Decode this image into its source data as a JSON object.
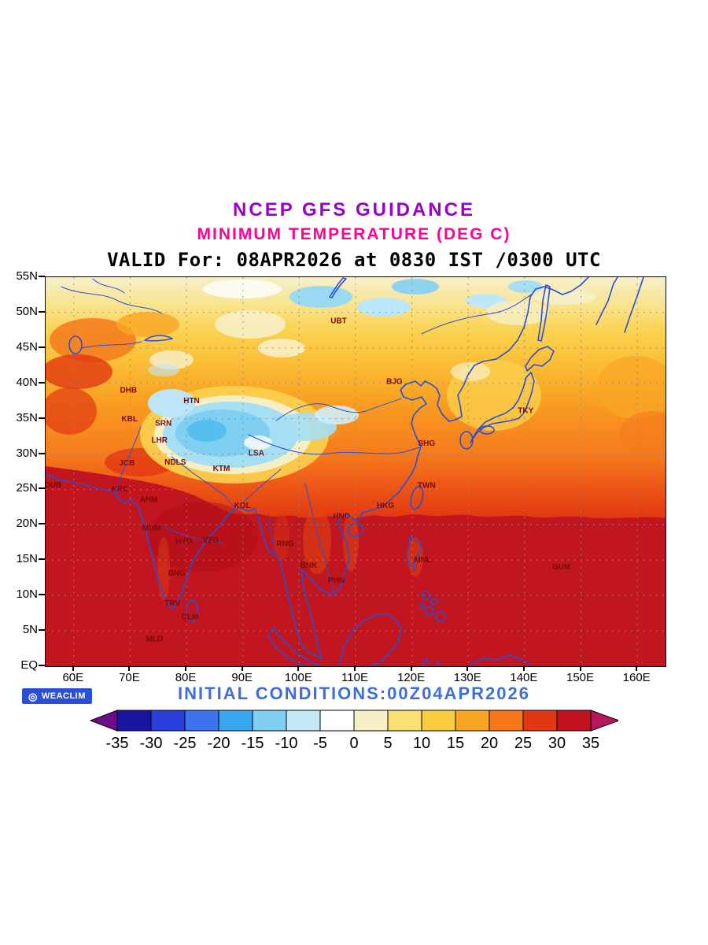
{
  "titles": {
    "line1": "NCEP GFS GUIDANCE",
    "line2": "MINIMUM TEMPERATURE (DEG C)",
    "line3": "VALID For: 08APR2026 at 0830 IST /0300 UTC"
  },
  "colors": {
    "title1": "#9900CC",
    "title2": "#FF0099",
    "title3": "#000000",
    "initial_conditions": "#3C6EDE",
    "badge_background": "#2B50D6",
    "badge_text": "#FFFFFF",
    "coastline": "#2A4FD6",
    "station_label": "#7A0A0A",
    "gridline": "#8A8A8A",
    "axis": "#000000"
  },
  "map": {
    "lon_min": 55,
    "lon_max": 165,
    "lat_min": 0,
    "lat_max": 55,
    "x_axis": {
      "labels": [
        "60E",
        "70E",
        "80E",
        "90E",
        "100E",
        "110E",
        "120E",
        "130E",
        "140E",
        "150E",
        "160E"
      ],
      "lons": [
        60,
        70,
        80,
        90,
        100,
        110,
        120,
        130,
        140,
        150,
        160
      ]
    },
    "y_axis": {
      "labels": [
        "55N",
        "50N",
        "45N",
        "40N",
        "35N",
        "30N",
        "25N",
        "20N",
        "15N",
        "10N",
        "5N",
        "EQ"
      ],
      "lats": [
        55,
        50,
        45,
        40,
        35,
        30,
        25,
        20,
        15,
        10,
        5,
        0
      ]
    },
    "stations": [
      {
        "name": "UBT",
        "lon": 107.0,
        "lat": 48.5
      },
      {
        "name": "BJG",
        "lon": 116.9,
        "lat": 39.9
      },
      {
        "name": "TKY",
        "lon": 140.2,
        "lat": 35.8
      },
      {
        "name": "SHG",
        "lon": 122.6,
        "lat": 31.2
      },
      {
        "name": "DHB",
        "lon": 69.7,
        "lat": 38.7
      },
      {
        "name": "HTN",
        "lon": 80.9,
        "lat": 37.2
      },
      {
        "name": "KBL",
        "lon": 69.9,
        "lat": 34.6
      },
      {
        "name": "SRN",
        "lon": 75.9,
        "lat": 34.0
      },
      {
        "name": "LHR",
        "lon": 75.2,
        "lat": 31.6
      },
      {
        "name": "LSA",
        "lon": 92.4,
        "lat": 29.8
      },
      {
        "name": "JCB",
        "lon": 69.4,
        "lat": 28.4
      },
      {
        "name": "NDLS",
        "lon": 78.0,
        "lat": 28.5
      },
      {
        "name": "KTM",
        "lon": 86.2,
        "lat": 27.6
      },
      {
        "name": "DUB",
        "lon": 56.3,
        "lat": 25.3
      },
      {
        "name": "KRC",
        "lon": 68.2,
        "lat": 24.7
      },
      {
        "name": "TWN",
        "lon": 122.6,
        "lat": 25.2
      },
      {
        "name": "AHM",
        "lon": 73.3,
        "lat": 23.2
      },
      {
        "name": "KOL",
        "lon": 89.9,
        "lat": 22.4
      },
      {
        "name": "HKG",
        "lon": 115.3,
        "lat": 22.4
      },
      {
        "name": "HND",
        "lon": 107.5,
        "lat": 20.9
      },
      {
        "name": "MUM",
        "lon": 73.8,
        "lat": 19.2
      },
      {
        "name": "HYD",
        "lon": 79.5,
        "lat": 17.3
      },
      {
        "name": "VZG",
        "lon": 84.3,
        "lat": 17.5
      },
      {
        "name": "RNG",
        "lon": 97.5,
        "lat": 17.0
      },
      {
        "name": "BNK",
        "lon": 101.7,
        "lat": 13.9
      },
      {
        "name": "MNL",
        "lon": 121.9,
        "lat": 14.7
      },
      {
        "name": "GUM",
        "lon": 146.5,
        "lat": 13.7
      },
      {
        "name": "PHN",
        "lon": 106.6,
        "lat": 11.8
      },
      {
        "name": "BNG",
        "lon": 78.3,
        "lat": 12.8
      },
      {
        "name": "TRV",
        "lon": 77.5,
        "lat": 8.6
      },
      {
        "name": "CLM",
        "lon": 80.6,
        "lat": 6.6
      },
      {
        "name": "MLD",
        "lon": 74.3,
        "lat": 3.5
      }
    ]
  },
  "colorbar": {
    "tick_labels": [
      "-35",
      "-30",
      "-25",
      "-20",
      "-15",
      "-10",
      "-5",
      "0",
      "5",
      "10",
      "15",
      "20",
      "25",
      "30",
      "35"
    ],
    "segment_colors": [
      "#1A16A0",
      "#2A3EDC",
      "#3D74EE",
      "#38A6EE",
      "#7ECFF2",
      "#C2E8F8",
      "#FFFFFF",
      "#F6EFC5",
      "#FAE071",
      "#FBCB3E",
      "#F9A524",
      "#F5791B",
      "#E23812",
      "#C21220"
    ],
    "arrow_left_color": "#6E0D8C",
    "arrow_right_color": "#B5175C"
  },
  "footer": {
    "initial_conditions": "INITIAL CONDITIONS:00Z04APR2026",
    "badge_label": "WEACLIM"
  }
}
